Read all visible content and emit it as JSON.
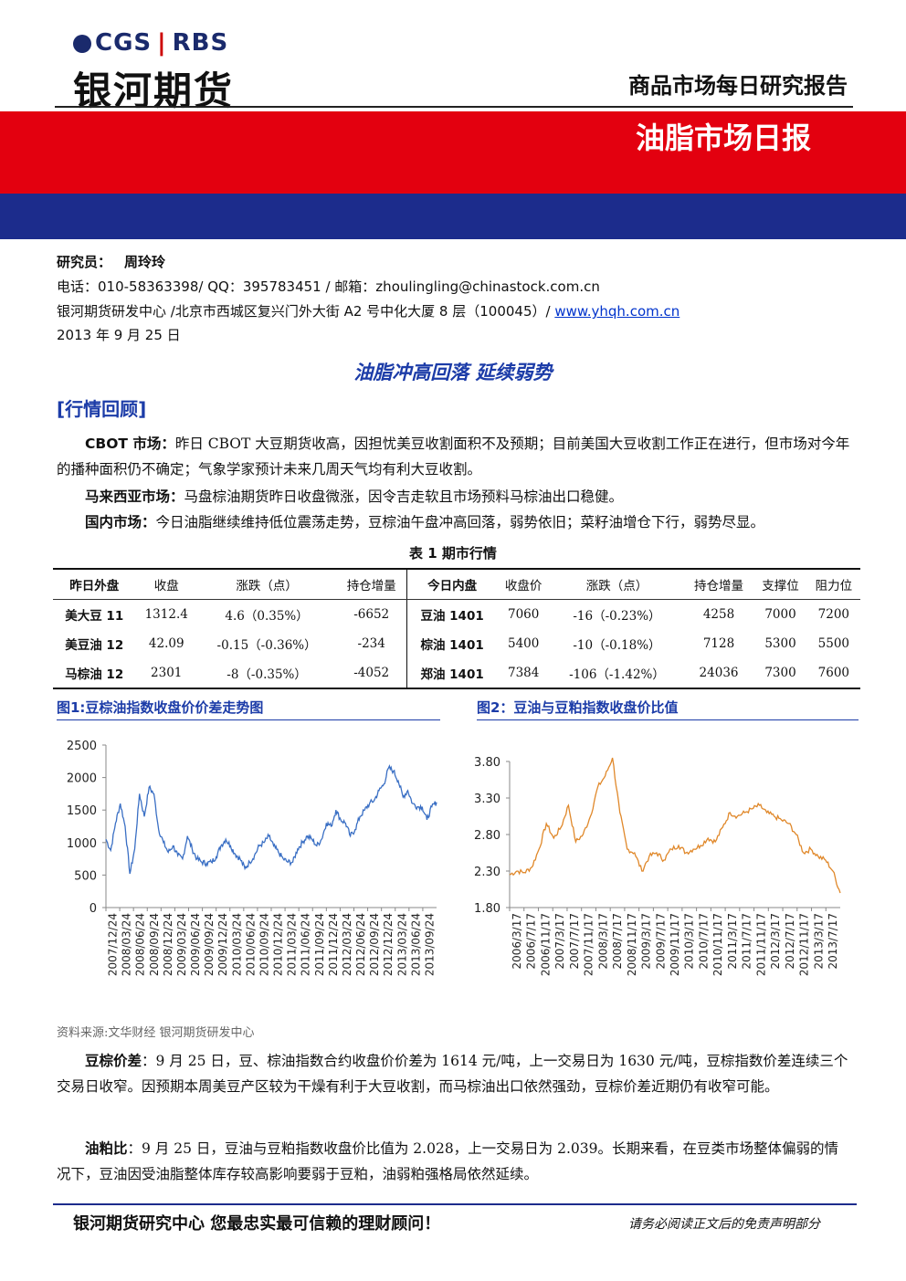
{
  "header": {
    "logo_cgs": "CGS",
    "logo_sep": "|",
    "logo_rbs": "RBS",
    "company": "银河期货",
    "report_type": "商品市场每日研究报告",
    "report_name": "油脂市场日报"
  },
  "info": {
    "analyst_label": "研究员：",
    "analyst_name": "周玲玲",
    "contact": "电话：010-58363398/ QQ：395783451 / 邮箱：zhoulingling@chinastock.com.cn",
    "address": "银河期货研发中心 /北京市西城区复兴门外大街 A2 号中化大厦 8 层（100045）/ ",
    "website": "www.yhqh.com.cn",
    "date": "2013 年 9 月 25 日"
  },
  "main_title": "油脂冲高回落  延续弱势",
  "section_title": "[行情回顾]",
  "review": [
    {
      "label": "CBOT 市场：",
      "text": "昨日 CBOT 大豆期货收高，因担忧美豆收割面积不及预期；目前美国大豆收割工作正在进行，但市场对今年的播种面积仍不确定；气象学家预计未来几周天气均有利大豆收割。"
    },
    {
      "label": "马来西亚市场：",
      "text": "马盘棕油期货昨日收盘微涨，因令吉走软且市场预料马棕油出口稳健。"
    },
    {
      "label": "国内市场：",
      "text": "今日油脂继续维持低位震荡走势，豆棕油午盘冲高回落，弱势依旧；菜籽油增仓下行，弱势尽显。"
    }
  ],
  "table": {
    "caption": "表 1    期市行情",
    "headers": [
      "昨日外盘",
      "收盘",
      "涨跌（点）",
      "持仓增量",
      "今日内盘",
      "收盘价",
      "涨跌（点）",
      "持仓增量",
      "支撑位",
      "阻力位"
    ],
    "rows": [
      [
        "美大豆 11",
        "1312.4",
        "4.6（0.35%）",
        "-6652",
        "豆油 1401",
        "7060",
        "-16（-0.23%）",
        "4258",
        "7000",
        "7200"
      ],
      [
        "美豆油 12",
        "42.09",
        "-0.15（-0.36%）",
        "-234",
        "棕油 1401",
        "5400",
        "-10（-0.18%）",
        "7128",
        "5300",
        "5500"
      ],
      [
        "马棕油 12",
        "2301",
        "-8（-0.35%）",
        "-4052",
        "郑油 1401",
        "7384",
        "-106（-1.42%）",
        "24036",
        "7300",
        "7600"
      ]
    ]
  },
  "fig1_title": "图1:豆棕油指数收盘价价差走势图",
  "fig2_title": "图2：豆油与豆粕指数收盘价比值",
  "chart_data": [
    {
      "type": "line",
      "color": "#3a6fc4",
      "ylim": [
        0,
        2500
      ],
      "yticks": [
        0,
        500,
        1000,
        1500,
        2000,
        2500
      ],
      "xticks": [
        "2007/12/24",
        "2008/03/24",
        "2008/06/24",
        "2008/09/24",
        "2008/12/24",
        "2009/03/24",
        "2009/06/24",
        "2009/09/24",
        "2009/12/24",
        "2010/03/24",
        "2010/06/24",
        "2010/09/24",
        "2010/12/24",
        "2011/03/24",
        "2011/06/24",
        "2011/09/24",
        "2011/12/24",
        "2012/03/24",
        "2012/06/24",
        "2012/09/24",
        "2012/12/24",
        "2013/03/24",
        "2013/06/24",
        "2013/09/24"
      ],
      "series": [
        {
          "x": [
            "2007/12/24",
            "2008/01/24",
            "2008/02/24",
            "2008/03/24",
            "2008/04/24",
            "2008/05/24",
            "2008/06/24",
            "2008/07/24",
            "2008/08/24",
            "2008/09/24",
            "2008/10/24",
            "2008/11/24",
            "2008/12/24",
            "2009/01/24",
            "2009/02/24",
            "2009/03/24",
            "2009/04/24",
            "2009/05/24",
            "2009/06/24",
            "2009/07/24",
            "2009/08/24",
            "2009/09/24",
            "2009/10/24",
            "2009/11/24",
            "2009/12/24",
            "2010/01/24",
            "2010/02/24",
            "2010/03/24",
            "2010/04/24",
            "2010/05/24",
            "2010/06/24",
            "2010/07/24",
            "2010/08/24",
            "2010/09/24",
            "2010/10/24",
            "2010/11/24",
            "2010/12/24",
            "2011/01/24",
            "2011/02/24",
            "2011/03/24",
            "2011/04/24",
            "2011/05/24",
            "2011/06/24",
            "2011/07/24",
            "2011/08/24",
            "2011/09/24",
            "2011/10/24",
            "2011/11/24",
            "2011/12/24",
            "2012/01/24",
            "2012/02/24",
            "2012/03/24",
            "2012/04/24",
            "2012/05/24",
            "2012/06/24",
            "2012/07/24",
            "2012/08/24",
            "2012/09/24",
            "2012/10/24",
            "2012/11/24",
            "2012/12/24",
            "2013/01/24",
            "2013/02/24",
            "2013/03/24",
            "2013/04/24",
            "2013/05/24",
            "2013/06/24",
            "2013/07/24",
            "2013/08/24",
            "2013/09/24"
          ],
          "values": [
            1050,
            880,
            1300,
            1600,
            1250,
            520,
            900,
            1750,
            1400,
            1850,
            1750,
            1200,
            1000,
            850,
            950,
            800,
            750,
            1100,
            900,
            750,
            700,
            680,
            700,
            780,
            950,
            1050,
            950,
            820,
            750,
            600,
            700,
            800,
            950,
            1000,
            1100,
            950,
            850,
            750,
            700,
            700,
            900,
            1000,
            1100,
            1050,
            950,
            1050,
            1300,
            1250,
            1500,
            1350,
            1300,
            1100,
            1200,
            1400,
            1500,
            1600,
            1650,
            1800,
            1900,
            2150,
            2100,
            1950,
            1700,
            1800,
            1600,
            1550,
            1550,
            1350,
            1550,
            1620
          ]
        }
      ]
    },
    {
      "type": "line",
      "color": "#e0882a",
      "ylim": [
        1.8,
        3.8
      ],
      "yticks": [
        1.8,
        2.3,
        2.8,
        3.3,
        3.8
      ],
      "xticks": [
        "2006/3/17",
        "2006/7/17",
        "2006/11/17",
        "2007/3/17",
        "2007/7/17",
        "2007/11/17",
        "2008/3/17",
        "2008/7/17",
        "2008/11/17",
        "2009/3/17",
        "2009/7/17",
        "2009/11/17",
        "2010/3/17",
        "2010/7/17",
        "2010/11/17",
        "2011/3/17",
        "2011/7/17",
        "2011/11/17",
        "2012/3/17",
        "2012/7/17",
        "2012/11/17",
        "2013/3/17",
        "2013/7/17"
      ],
      "series": [
        {
          "x": [
            "2006/3/17",
            "2006/5/17",
            "2006/7/17",
            "2006/9/17",
            "2006/11/17",
            "2007/1/17",
            "2007/3/17",
            "2007/5/17",
            "2007/7/17",
            "2007/9/17",
            "2007/11/17",
            "2008/1/17",
            "2008/3/17",
            "2008/5/17",
            "2008/7/17",
            "2008/9/17",
            "2008/11/17",
            "2009/1/17",
            "2009/3/17",
            "2009/5/17",
            "2009/7/17",
            "2009/9/17",
            "2009/11/17",
            "2010/1/17",
            "2010/3/17",
            "2010/5/17",
            "2010/7/17",
            "2010/9/17",
            "2010/11/17",
            "2011/1/17",
            "2011/3/17",
            "2011/5/17",
            "2011/7/17",
            "2011/9/17",
            "2011/11/17",
            "2012/1/17",
            "2012/3/17",
            "2012/5/17",
            "2012/7/17",
            "2012/9/17",
            "2012/11/17",
            "2013/1/17",
            "2013/3/17",
            "2013/5/17",
            "2013/7/17",
            "2013/9/17"
          ],
          "values": [
            2.25,
            2.3,
            2.28,
            2.35,
            2.6,
            2.95,
            2.75,
            2.9,
            3.2,
            2.7,
            2.8,
            3.05,
            3.45,
            3.6,
            3.85,
            3.1,
            2.6,
            2.55,
            2.3,
            2.5,
            2.55,
            2.45,
            2.6,
            2.65,
            2.55,
            2.6,
            2.65,
            2.75,
            2.7,
            2.9,
            3.1,
            3.05,
            3.1,
            3.15,
            3.2,
            3.1,
            3.05,
            3.0,
            2.95,
            2.8,
            2.55,
            2.6,
            2.5,
            2.45,
            2.3,
            2.0
          ]
        }
      ]
    }
  ],
  "source": "资料来源:文华财经    银河期货研发中心",
  "analysis": [
    {
      "label": "豆棕价差",
      "text": "：9 月 25 日，豆、棕油指数合约收盘价价差为 1614 元/吨，上一交易日为 1630 元/吨，豆棕指数价差连续三个交易日收窄。因预期本周美豆产区较为干燥有利于大豆收割，而马棕油出口依然强劲，豆棕价差近期仍有收窄可能。"
    },
    {
      "label": "油粕比",
      "text": "：9 月 25 日，豆油与豆粕指数收盘价比值为 2.028，上一交易日为 2.039。长期来看，在豆类市场整体偏弱的情况下，豆油因受油脂整体库存较高影响要弱于豆粕，油弱粕强格局依然延续。"
    }
  ],
  "footer": {
    "left": "银河期货研究中心   您最忠实最可信赖的理财顾问！",
    "right": "请务必阅读正文后的免责声明部分"
  }
}
